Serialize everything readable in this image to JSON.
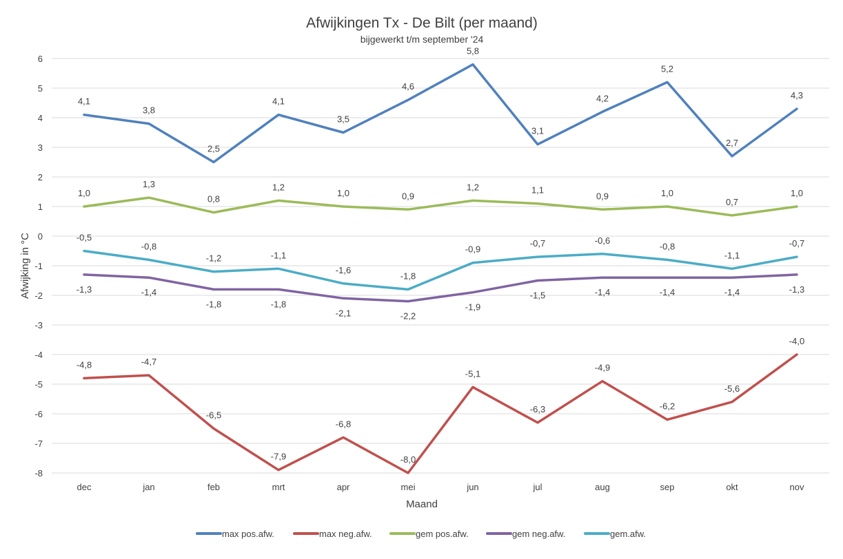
{
  "chart_data": {
    "type": "line",
    "title": "Afwijkingen Tx - De Bilt (per maand)",
    "subtitle": "bijgewerkt t/m september '24",
    "xlabel": "Maand",
    "ylabel": "Afwijking in °C",
    "ylim": [
      -8,
      6
    ],
    "yticks": [
      6,
      5,
      4,
      3,
      2,
      1,
      0,
      -1,
      -2,
      -3,
      -4,
      -5,
      -6,
      -7,
      -8
    ],
    "grid": true,
    "legend": "bottom",
    "categories": [
      "dec",
      "jan",
      "feb",
      "mrt",
      "apr",
      "mei",
      "jun",
      "jul",
      "aug",
      "sep",
      "okt",
      "nov"
    ],
    "series": [
      {
        "name": "max pos.afw.",
        "color": "#4f81bd",
        "label_pos": "above",
        "values": [
          4.1,
          3.8,
          2.5,
          4.1,
          3.5,
          4.6,
          5.8,
          3.1,
          4.2,
          5.2,
          2.7,
          4.3
        ]
      },
      {
        "name": "max neg.afw.",
        "color": "#c0504d",
        "label_pos": "above",
        "values": [
          -4.8,
          -4.7,
          -6.5,
          -7.9,
          -6.8,
          -8.0,
          -5.1,
          -6.3,
          -4.9,
          -6.2,
          -5.6,
          -4.0
        ]
      },
      {
        "name": "gem pos.afw.",
        "color": "#9bbb59",
        "label_pos": "above",
        "values": [
          1.0,
          1.3,
          0.8,
          1.2,
          1.0,
          0.9,
          1.2,
          1.1,
          0.9,
          1.0,
          0.7,
          1.0
        ]
      },
      {
        "name": "gem neg.afw.",
        "color": "#8064a2",
        "label_pos": "below",
        "values": [
          -1.3,
          -1.4,
          -1.8,
          -1.8,
          -2.1,
          -2.2,
          -1.9,
          -1.5,
          -1.4,
          -1.4,
          -1.4,
          -1.3
        ]
      },
      {
        "name": "gem.afw.",
        "color": "#4bacc6",
        "label_pos": "above",
        "values": [
          -0.5,
          -0.8,
          -1.2,
          -1.1,
          -1.6,
          -1.8,
          -0.9,
          -0.7,
          -0.6,
          -0.8,
          -1.1,
          -0.7
        ]
      }
    ]
  }
}
